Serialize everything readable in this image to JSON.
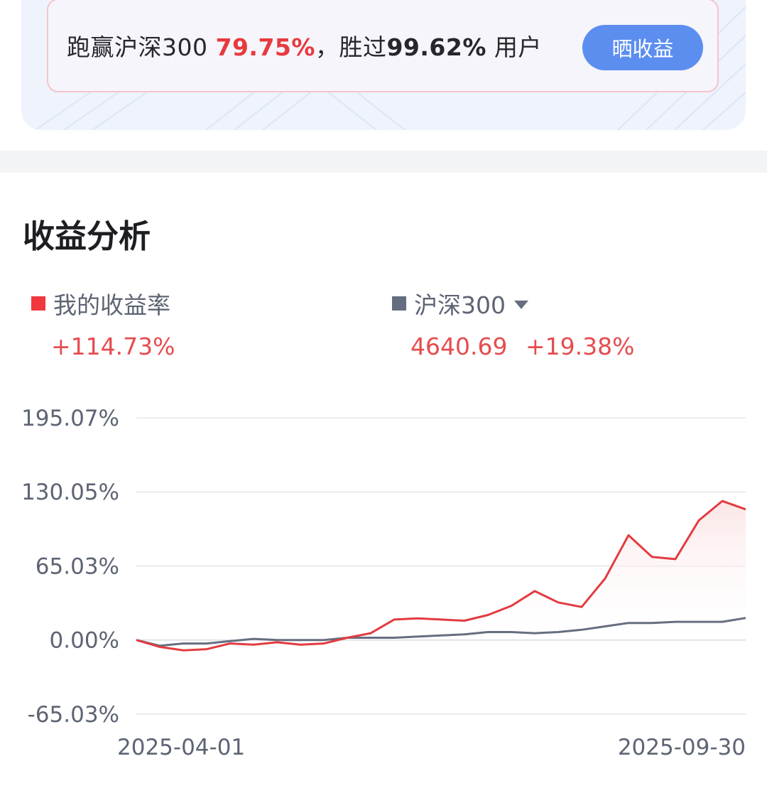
{
  "banner": {
    "prefix": "跑赢沪深300",
    "outperform": "79.75%",
    "middle": "，胜过",
    "beat_users": "99.62%",
    "suffix": "用户",
    "share_label": "晒收益"
  },
  "section": {
    "title": "收益分析"
  },
  "legend": {
    "mine_label": "我的收益率",
    "mine_value": "+114.73%",
    "index_label": "沪深300",
    "index_price": "4640.69",
    "index_change": "+19.38%"
  },
  "colors": {
    "mine": "#e23b40",
    "index": "#666e80",
    "accent": "#5c8ef0",
    "grid": "#e3e5ea"
  },
  "chart_data": {
    "type": "line",
    "title": "",
    "ylim": [
      -65.03,
      195.07
    ],
    "y_ticks": [
      195.07,
      130.05,
      65.03,
      0.0,
      -65.03
    ],
    "y_tick_labels": [
      "195.07%",
      "130.05%",
      "65.03%",
      "0.00%",
      "-65.03%"
    ],
    "x_start_label": "2025-04-01",
    "x_end_label": "2025-09-30",
    "x": [
      "04-01",
      "04-08",
      "04-15",
      "04-22",
      "04-29",
      "05-06",
      "05-13",
      "05-20",
      "05-27",
      "06-03",
      "06-10",
      "06-17",
      "06-24",
      "07-01",
      "07-08",
      "07-15",
      "07-22",
      "07-29",
      "08-05",
      "08-12",
      "08-19",
      "08-26",
      "09-02",
      "09-09",
      "09-16",
      "09-23",
      "09-30"
    ],
    "series": [
      {
        "name": "我的收益率",
        "values": [
          0,
          -6,
          -9,
          -8,
          -3,
          -4,
          -2,
          -4,
          -3,
          2,
          6,
          18,
          19,
          18,
          17,
          22,
          30,
          43,
          33,
          29,
          54,
          92,
          73,
          71,
          105,
          122,
          114.73
        ]
      },
      {
        "name": "沪深300",
        "values": [
          0,
          -5,
          -3,
          -3,
          -1,
          1,
          0,
          0,
          0,
          2,
          2,
          2,
          3,
          4,
          5,
          7,
          7,
          6,
          7,
          9,
          12,
          15,
          15,
          16,
          16,
          16,
          19.38
        ]
      }
    ]
  }
}
